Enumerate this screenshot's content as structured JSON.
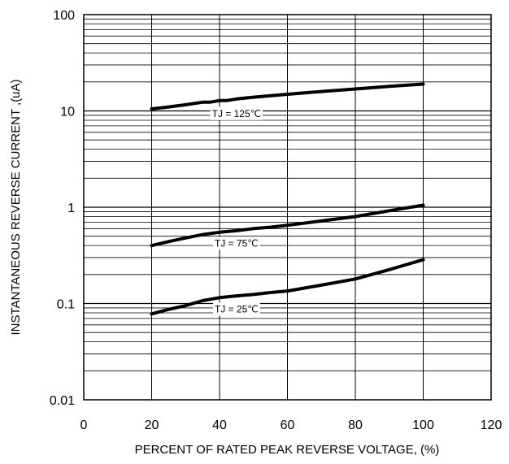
{
  "chart_data": {
    "type": "line",
    "title": "",
    "xlabel": "PERCENT OF RATED PEAK REVERSE VOLTAGE, (%)",
    "ylabel": "INSTANTANEOUS REVERSE CURRENT ,(uA)",
    "xlim": [
      0,
      120
    ],
    "ylim": [
      0.01,
      100
    ],
    "yscale": "log",
    "grid": true,
    "x_ticks": [
      "0",
      "20",
      "40",
      "60",
      "80",
      "100",
      "120"
    ],
    "y_ticks": [
      "100",
      "10",
      "1",
      "0.1",
      "0.01"
    ],
    "series": [
      {
        "name": "TJ = 125℃",
        "x": [
          20,
          25,
          30,
          35,
          37,
          40,
          42,
          45,
          50,
          60,
          70,
          80,
          90,
          100
        ],
        "y": [
          10.5,
          11.0,
          11.6,
          12.3,
          12.3,
          12.8,
          12.8,
          13.3,
          13.9,
          14.9,
          15.9,
          16.9,
          18.0,
          19.0
        ]
      },
      {
        "name": "TJ = 75℃",
        "x": [
          20,
          25,
          30,
          35,
          40,
          45,
          50,
          55,
          60,
          70,
          80,
          90,
          100
        ],
        "y": [
          0.4,
          0.44,
          0.48,
          0.52,
          0.55,
          0.57,
          0.6,
          0.62,
          0.65,
          0.72,
          0.8,
          0.92,
          1.05
        ]
      },
      {
        "name": "TJ = 25℃",
        "x": [
          20,
          25,
          30,
          35,
          40,
          45,
          50,
          55,
          60,
          70,
          80,
          90,
          100
        ],
        "y": [
          0.078,
          0.087,
          0.095,
          0.107,
          0.115,
          0.12,
          0.124,
          0.13,
          0.135,
          0.155,
          0.18,
          0.225,
          0.285
        ]
      }
    ]
  }
}
